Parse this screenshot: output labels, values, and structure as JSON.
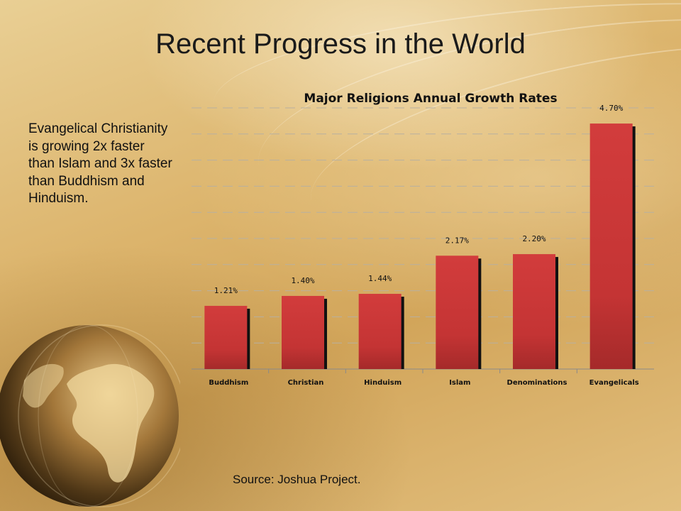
{
  "slide": {
    "title": "Recent Progress in the World",
    "side_text": "Evangelical Christianity is growing 2x faster than Islam and 3x faster than Buddhism and Hinduism.",
    "source": "Source: Joshua Project."
  },
  "colors": {
    "bar_top": "#d23c3c",
    "bar_bottom": "#a52a2a",
    "bar_shadow": "#111111",
    "background": "#dcb46c"
  },
  "icons": {
    "globe": "globe-icon"
  },
  "chart_data": {
    "type": "bar",
    "title": "Major Religions Annual Growth Rates",
    "categories": [
      "Buddhism",
      "Christian",
      "Hinduism",
      "Islam",
      "Denominations",
      "Evangelicals"
    ],
    "values": [
      1.21,
      1.4,
      1.44,
      2.17,
      2.2,
      4.7
    ],
    "data_labels": [
      "1.21%",
      "1.40%",
      "1.44%",
      "2.17%",
      "2.20%",
      "4.70%"
    ],
    "ylim": [
      0,
      5
    ],
    "grid": true,
    "legend": "none"
  }
}
